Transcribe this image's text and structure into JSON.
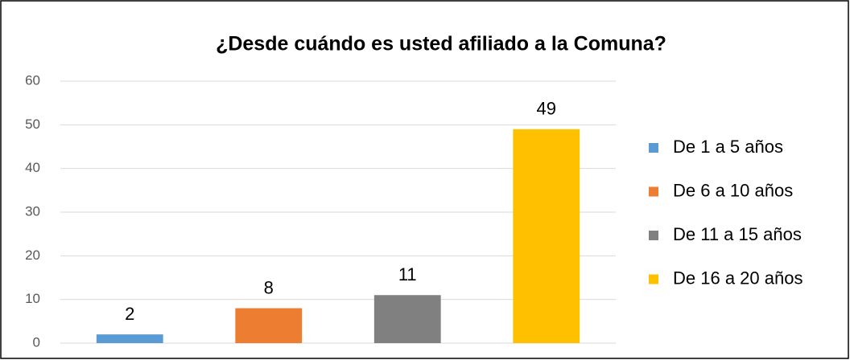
{
  "chart_data": {
    "type": "bar",
    "title": "¿Desde cuándo es usted afiliado a la Comuna?",
    "series": [
      {
        "name": "De 1 a 5 años",
        "color": "#5b9bd5",
        "values": [
          2
        ]
      },
      {
        "name": "De 6 a 10 años",
        "color": "#ed7d31",
        "values": [
          8
        ]
      },
      {
        "name": "De 11 a 15 años",
        "color": "#808080",
        "values": [
          11
        ]
      },
      {
        "name": "De 16 a 20 años",
        "color": "#ffc000",
        "values": [
          49
        ]
      }
    ],
    "ylim": [
      0,
      60
    ],
    "yticks": [
      0,
      10,
      20,
      30,
      40,
      50,
      60
    ],
    "grid": true,
    "legend": "right"
  }
}
